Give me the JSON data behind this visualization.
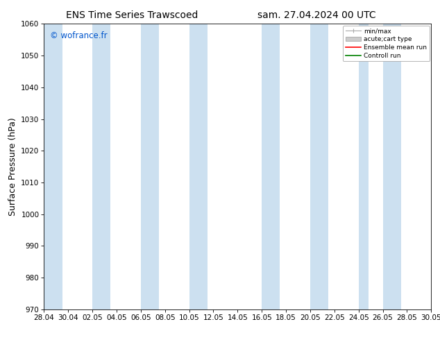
{
  "title_left": "ENS Time Series Trawscoed",
  "title_right": "sam. 27.04.2024 00 UTC",
  "ylabel": "Surface Pressure (hPa)",
  "ylim": [
    970,
    1060
  ],
  "yticks": [
    970,
    980,
    990,
    1000,
    1010,
    1020,
    1030,
    1040,
    1050,
    1060
  ],
  "xtick_labels": [
    "28.04",
    "30.04",
    "02.05",
    "04.05",
    "06.05",
    "08.05",
    "10.05",
    "12.05",
    "14.05",
    "16.05",
    "18.05",
    "20.05",
    "22.05",
    "24.05",
    "26.05",
    "28.05",
    "30.05"
  ],
  "xtick_positions": [
    0,
    2,
    4,
    6,
    8,
    10,
    12,
    14,
    16,
    18,
    20,
    22,
    24,
    26,
    28,
    30,
    32
  ],
  "xlim": [
    0,
    32
  ],
  "watermark": "© wofrance.fr",
  "watermark_color": "#0055cc",
  "background_color": "#ffffff",
  "plot_bg_color": "#ffffff",
  "shaded_band_color": "#cce0f0",
  "shaded_band_alpha": 1.0,
  "shaded_columns": [
    0.0,
    4.0,
    8.0,
    12.0,
    18.0,
    22.0,
    26.0,
    28.0
  ],
  "shaded_widths": [
    1.5,
    1.5,
    1.5,
    1.5,
    1.5,
    1.5,
    0.8,
    1.5
  ],
  "legend_labels": [
    "min/max",
    "acute;cart type",
    "Ensemble mean run",
    "Controll run"
  ],
  "title_fontsize": 10,
  "tick_fontsize": 7.5,
  "ylabel_fontsize": 9
}
